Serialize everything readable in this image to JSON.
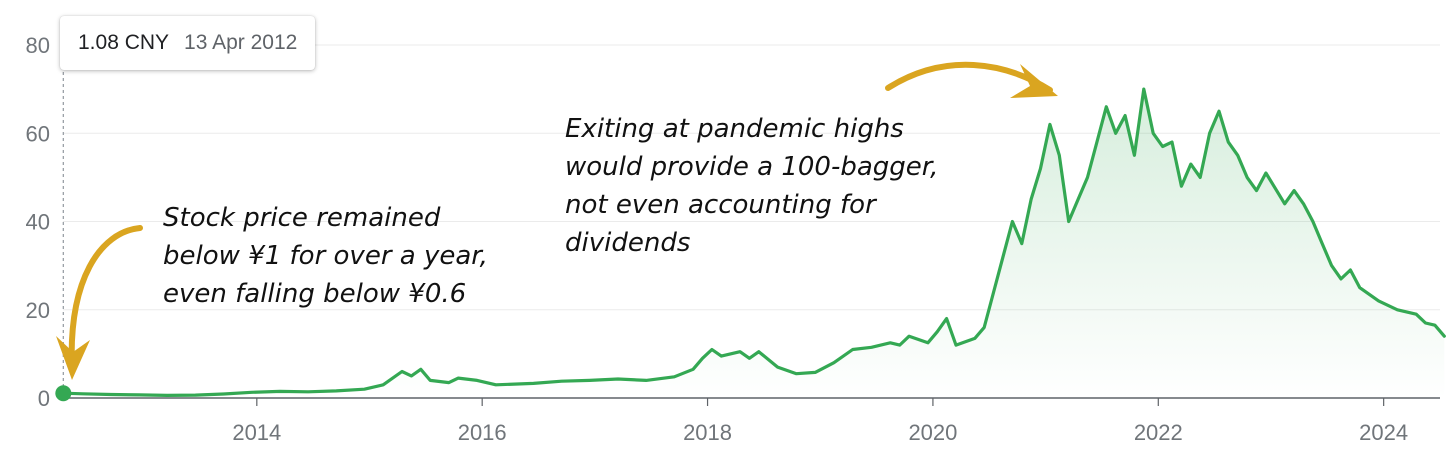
{
  "tooltip": {
    "price": "1.08 CNY",
    "date": "13 Apr 2012"
  },
  "annotations": {
    "left": "Stock price remained\nbelow ¥1 for over a year,\neven falling below ¥0.6",
    "right": "Exiting at pandemic highs\nwould provide a 100-bagger,\nnot even accounting for\ndividends"
  },
  "colors": {
    "line": "#34a853",
    "arrow": "#daa520",
    "grid": "#ebebeb",
    "axis": "#5f6368",
    "tick_text": "#70757a"
  },
  "chart_data": {
    "type": "area",
    "title": "",
    "xlabel": "",
    "ylabel": "",
    "xlim": [
      2012.28,
      2024.5
    ],
    "ylim": [
      0,
      80
    ],
    "y_ticks": [
      "0",
      "20",
      "40",
      "60",
      "80"
    ],
    "x_ticks": [
      "2014",
      "2016",
      "2018",
      "2020",
      "2022",
      "2024"
    ],
    "grid": true,
    "highlighted_point": {
      "x": "2012-04-13",
      "y": 1.08
    },
    "series": [
      {
        "points": [
          [
            "2012-04-13",
            1.08
          ],
          [
            "2012-06",
            0.95
          ],
          [
            "2012-09",
            0.8
          ],
          [
            "2012-12",
            0.7
          ],
          [
            "2013-03",
            0.6
          ],
          [
            "2013-06",
            0.65
          ],
          [
            "2013-09",
            0.9
          ],
          [
            "2013-12",
            1.3
          ],
          [
            "2014-03",
            1.5
          ],
          [
            "2014-06",
            1.4
          ],
          [
            "2014-09",
            1.6
          ],
          [
            "2014-12",
            2.0
          ],
          [
            "2015-02",
            3.0
          ],
          [
            "2015-04",
            6.0
          ],
          [
            "2015-05",
            5.0
          ],
          [
            "2015-06",
            6.5
          ],
          [
            "2015-07",
            4.0
          ],
          [
            "2015-09",
            3.5
          ],
          [
            "2015-10",
            4.5
          ],
          [
            "2015-12",
            4.0
          ],
          [
            "2016-02",
            3.0
          ],
          [
            "2016-06",
            3.3
          ],
          [
            "2016-09",
            3.8
          ],
          [
            "2016-12",
            4.0
          ],
          [
            "2017-03",
            4.3
          ],
          [
            "2017-06",
            4.0
          ],
          [
            "2017-09",
            4.8
          ],
          [
            "2017-11",
            6.5
          ],
          [
            "2017-12",
            9.0
          ],
          [
            "2018-01",
            11.0
          ],
          [
            "2018-02",
            9.5
          ],
          [
            "2018-04",
            10.5
          ],
          [
            "2018-05",
            9.0
          ],
          [
            "2018-06",
            10.5
          ],
          [
            "2018-08",
            7.0
          ],
          [
            "2018-10",
            5.5
          ],
          [
            "2018-12",
            5.8
          ],
          [
            "2019-02",
            8.0
          ],
          [
            "2019-04",
            11.0
          ],
          [
            "2019-06",
            11.5
          ],
          [
            "2019-08",
            12.5
          ],
          [
            "2019-09",
            12.0
          ],
          [
            "2019-10",
            14.0
          ],
          [
            "2019-12",
            12.5
          ],
          [
            "2020-01",
            15.0
          ],
          [
            "2020-02",
            18.0
          ],
          [
            "2020-03",
            12.0
          ],
          [
            "2020-05",
            13.5
          ],
          [
            "2020-06",
            16.0
          ],
          [
            "2020-07",
            24.0
          ],
          [
            "2020-08",
            32.0
          ],
          [
            "2020-09",
            40.0
          ],
          [
            "2020-10",
            35.0
          ],
          [
            "2020-11",
            45.0
          ],
          [
            "2020-12",
            52.0
          ],
          [
            "2021-01",
            62.0
          ],
          [
            "2021-02",
            55.0
          ],
          [
            "2021-03",
            40.0
          ],
          [
            "2021-04",
            45.0
          ],
          [
            "2021-05",
            50.0
          ],
          [
            "2021-06",
            58.0
          ],
          [
            "2021-07",
            66.0
          ],
          [
            "2021-08",
            60.0
          ],
          [
            "2021-09",
            64.0
          ],
          [
            "2021-10",
            55.0
          ],
          [
            "2021-11",
            70.0
          ],
          [
            "2021-12",
            60.0
          ],
          [
            "2022-01",
            57.0
          ],
          [
            "2022-02",
            58.0
          ],
          [
            "2022-03",
            48.0
          ],
          [
            "2022-04",
            53.0
          ],
          [
            "2022-05",
            50.0
          ],
          [
            "2022-06",
            60.0
          ],
          [
            "2022-07",
            65.0
          ],
          [
            "2022-08",
            58.0
          ],
          [
            "2022-09",
            55.0
          ],
          [
            "2022-10",
            50.0
          ],
          [
            "2022-11",
            47.0
          ],
          [
            "2022-12",
            51.0
          ],
          [
            "2023-02",
            44.0
          ],
          [
            "2023-03",
            47.0
          ],
          [
            "2023-04",
            44.0
          ],
          [
            "2023-05",
            40.0
          ],
          [
            "2023-06",
            35.0
          ],
          [
            "2023-07",
            30.0
          ],
          [
            "2023-08",
            27.0
          ],
          [
            "2023-09",
            29.0
          ],
          [
            "2023-10",
            25.0
          ],
          [
            "2023-12",
            22.0
          ],
          [
            "2024-02",
            20.0
          ],
          [
            "2024-04",
            19.0
          ],
          [
            "2024-05",
            17.0
          ],
          [
            "2024-06",
            16.5
          ],
          [
            "2024-07",
            14.0
          ]
        ]
      }
    ]
  }
}
